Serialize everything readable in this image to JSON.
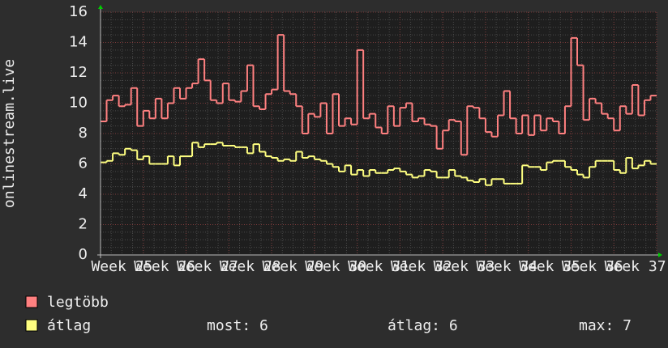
{
  "chart_data": {
    "type": "step",
    "y_label": "onlinestream.live",
    "xlim": [
      0,
      91
    ],
    "xticks": [
      {
        "value": 3.5,
        "label": "Week 25"
      },
      {
        "value": 10.5,
        "label": "Week 26"
      },
      {
        "value": 17.5,
        "label": "Week 27"
      },
      {
        "value": 24.5,
        "label": "Week 28"
      },
      {
        "value": 31.5,
        "label": "Week 29"
      },
      {
        "value": 38.5,
        "label": "Week 30"
      },
      {
        "value": 45.5,
        "label": "Week 31"
      },
      {
        "value": 52.5,
        "label": "Week 32"
      },
      {
        "value": 59.5,
        "label": "Week 33"
      },
      {
        "value": 66.5,
        "label": "Week 34"
      },
      {
        "value": 73.5,
        "label": "Week 35"
      },
      {
        "value": 80.5,
        "label": "Week 36"
      },
      {
        "value": 87.5,
        "label": "Week 37"
      }
    ],
    "ylim": [
      0,
      16
    ],
    "yticks": [
      0,
      2,
      4,
      6,
      8,
      10,
      12,
      14,
      16
    ],
    "grid": true,
    "series": [
      {
        "name": "legtöbb",
        "color": "#ff8080",
        "values": [
          8.8,
          10.2,
          10.5,
          9.8,
          9.9,
          11,
          8.5,
          9.5,
          9,
          10.3,
          9,
          10,
          11,
          10.3,
          11,
          11.3,
          12.9,
          11.5,
          10.2,
          10,
          11.3,
          10.2,
          10.1,
          10.8,
          12.5,
          9.8,
          9.6,
          10.6,
          10.9,
          14.5,
          10.8,
          10.6,
          9.8,
          8,
          9.3,
          9.1,
          10,
          8,
          10.6,
          8.5,
          9,
          8.6,
          13.5,
          9,
          9.3,
          8.4,
          8,
          9.8,
          8.5,
          9.7,
          10,
          8.8,
          9,
          8.6,
          8.5,
          7,
          8.2,
          8.9,
          8.8,
          6.6,
          9.8,
          9.7,
          9,
          8.1,
          7.8,
          9.2,
          10.8,
          9,
          8,
          9.2,
          7.9,
          9.2,
          8.2,
          9,
          8.8,
          8,
          9.8,
          14.3,
          12.5,
          8.9,
          10.3,
          10,
          9.3,
          9,
          8.2,
          9.8,
          9.3,
          11.2,
          9.2,
          10.2,
          10.5
        ]
      },
      {
        "name": "átlag",
        "color": "#ffff80",
        "values": [
          6.1,
          6.2,
          6.7,
          6.6,
          7,
          6.9,
          6.3,
          6.5,
          6,
          6,
          6,
          6.5,
          5.9,
          6.5,
          6.5,
          7.4,
          7.1,
          7.3,
          7.3,
          7.4,
          7.2,
          7.2,
          7.1,
          7.1,
          6.7,
          7.3,
          6.8,
          6.5,
          6.4,
          6.2,
          6.3,
          6.2,
          6.8,
          6.4,
          6.5,
          6.3,
          6.2,
          6,
          5.8,
          5.5,
          5.9,
          5.3,
          5.6,
          5.2,
          5.6,
          5.4,
          5.4,
          5.6,
          5.7,
          5.5,
          5.3,
          5.1,
          5.2,
          5.6,
          5.5,
          5.1,
          5.1,
          5.6,
          5.2,
          5.1,
          4.9,
          4.8,
          5,
          4.6,
          5,
          5,
          4.7,
          4.7,
          4.7,
          5.9,
          5.8,
          5.8,
          5.6,
          6.1,
          6.2,
          6.2,
          5.8,
          5.6,
          5.3,
          5.1,
          5.8,
          6.2,
          6.2,
          6.2,
          5.6,
          5.4,
          6.4,
          5.7,
          5.9,
          6.2,
          6
        ]
      }
    ],
    "stats": [
      "most: 6",
      "átlag: 6",
      "max: 7"
    ]
  }
}
